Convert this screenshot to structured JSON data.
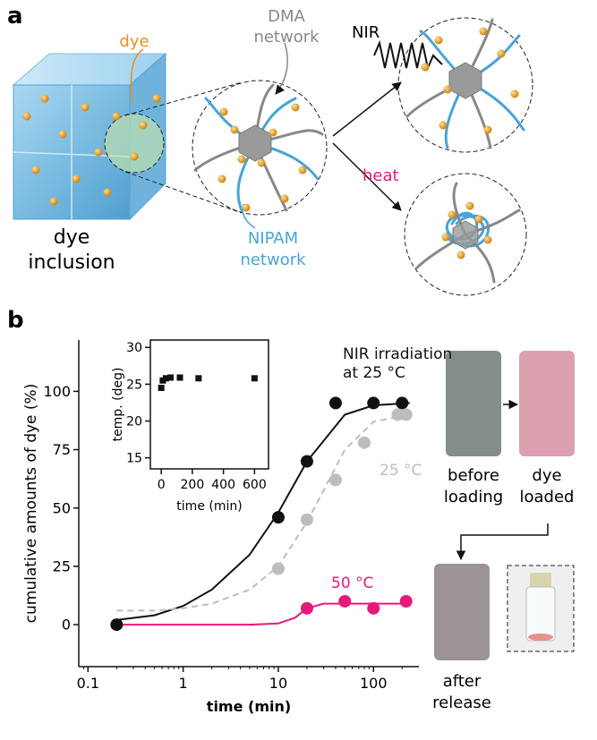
{
  "figure": {
    "panel_a": {
      "label": "a",
      "dye": "dye",
      "dma": [
        "DMA",
        "network"
      ],
      "inclusion": [
        "dye",
        "inclusion"
      ],
      "nipam": [
        "NIPAM",
        "network"
      ],
      "nir": "NIR",
      "heat": "heat"
    },
    "panel_b": {
      "label": "b",
      "photos": {
        "before": [
          "before",
          "loading"
        ],
        "loaded": [
          "dye",
          "loaded"
        ],
        "after": [
          "after",
          "release"
        ]
      }
    }
  },
  "chart_data": [
    {
      "type": "scatter",
      "x_label": "time (min)",
      "y_label": "cumulative amounts of dye (%)",
      "log_x": true,
      "xlim": [
        0.08,
        300
      ],
      "xticks": [
        0.1,
        1,
        10,
        100
      ],
      "ylim": [
        -18,
        122
      ],
      "yticks": [
        0,
        25,
        50,
        75,
        100
      ],
      "series": [
        {
          "name": "NIR irradiation at 25 °C",
          "color": "#111111",
          "dashed": false,
          "x": [
            0.2,
            10,
            20,
            40,
            100,
            200
          ],
          "values": [
            0,
            46,
            70,
            95,
            95,
            95
          ],
          "fit_x": [
            0.2,
            0.5,
            1,
            2,
            5,
            10,
            20,
            50,
            100,
            240
          ],
          "fit_values": [
            2,
            4,
            8,
            15,
            30,
            48,
            70,
            90,
            94,
            95
          ]
        },
        {
          "name": "25 °C",
          "color": "#bdbdbd",
          "dashed": true,
          "x": [
            10,
            20,
            40,
            80,
            180,
            220
          ],
          "values": [
            24,
            45,
            62,
            78,
            90,
            90
          ],
          "fit_x": [
            0.2,
            0.5,
            1,
            2,
            5,
            10,
            20,
            50,
            100,
            240
          ],
          "fit_values": [
            6,
            6,
            7,
            9,
            15,
            25,
            44,
            75,
            87,
            90
          ]
        },
        {
          "name": "50 °C",
          "color": "#e6197a",
          "dashed": false,
          "x": [
            20,
            50,
            100,
            220
          ],
          "values": [
            7,
            10,
            7,
            10
          ],
          "fit_x": [
            0.2,
            1,
            5,
            10,
            15,
            20,
            30,
            50,
            100,
            240
          ],
          "fit_values": [
            0,
            0,
            0,
            0.5,
            3,
            7,
            9,
            9,
            9,
            9
          ]
        }
      ]
    },
    {
      "type": "scatter",
      "x_label": "time (min)",
      "y_label": "temp. (deg)",
      "xlim": [
        -70,
        690
      ],
      "xticks": [
        0,
        200,
        400,
        600
      ],
      "ylim": [
        13.5,
        31
      ],
      "yticks": [
        15,
        20,
        25,
        30
      ],
      "series": [
        {
          "color": "#111111",
          "marker": "square",
          "x": [
            0,
            10,
            30,
            60,
            120,
            240,
            600
          ],
          "values": [
            24.5,
            25.5,
            25.8,
            25.9,
            25.9,
            25.8,
            25.8
          ]
        }
      ]
    }
  ]
}
